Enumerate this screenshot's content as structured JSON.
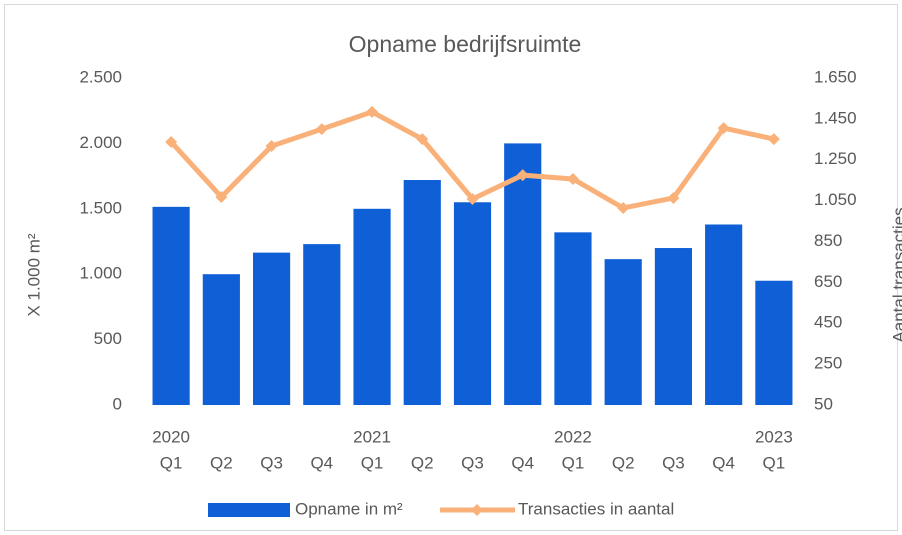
{
  "chart_data": {
    "type": "bar_line",
    "title": "Opname bedrijfsruimte",
    "y_label": "X 1.000 m²",
    "y2_label": "Aantal transacties",
    "categories": [
      "Q1",
      "Q2",
      "Q3",
      "Q4",
      "Q1",
      "Q2",
      "Q3",
      "Q4",
      "Q1",
      "Q2",
      "Q3",
      "Q4",
      "Q1"
    ],
    "years": [
      "2020",
      null,
      null,
      null,
      "2021",
      null,
      null,
      null,
      "2022",
      null,
      null,
      null,
      "2023"
    ],
    "series": [
      {
        "name": "Opname in m²",
        "type": "bar",
        "color": "#0f5fd6",
        "values": [
          1515,
          1000,
          1165,
          1230,
          1500,
          1720,
          1550,
          2000,
          1320,
          1115,
          1200,
          1380,
          950
        ]
      },
      {
        "name": "Transacties in aantal",
        "type": "line",
        "axis": "y2",
        "color": "#f9b179",
        "values": [
          1337,
          1068,
          1317,
          1400,
          1484,
          1351,
          1058,
          1175,
          1156,
          1014,
          1063,
          1405,
          1351
        ]
      }
    ],
    "ylim": [
      0,
      2500
    ],
    "yticks": [
      0,
      500,
      {
        "value": 1000,
        "label": "1.000"
      },
      {
        "value": 1500,
        "label": "1.500"
      },
      {
        "value": 2000,
        "label": "2.000"
      },
      {
        "value": 2500,
        "label": "2.500"
      }
    ],
    "y2lim": [
      50,
      1650
    ],
    "y2ticks": [
      50,
      250,
      450,
      650,
      850,
      {
        "value": 1050,
        "label": "1.050"
      },
      {
        "value": 1250,
        "label": "1.250"
      },
      {
        "value": 1450,
        "label": "1.450"
      },
      {
        "value": 1650,
        "label": "1.650"
      }
    ],
    "grid": false,
    "legend": "bottom"
  }
}
